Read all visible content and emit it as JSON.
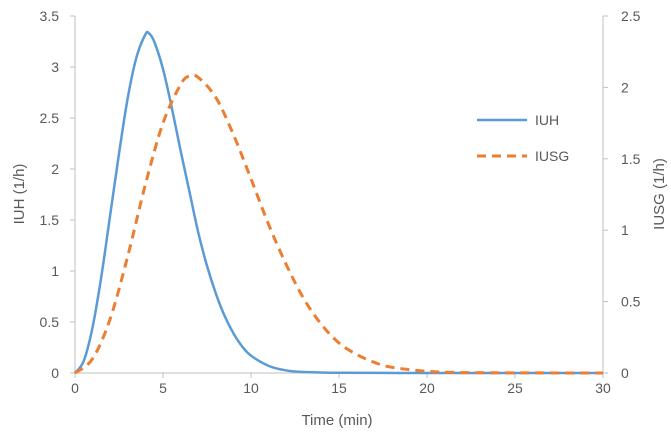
{
  "chart_data": {
    "type": "line",
    "xlabel": "Time (min)",
    "ylabel_left": "IUH (1/h)",
    "ylabel_right": "IUSG (1/h)",
    "xlim": [
      0,
      30
    ],
    "ylim_left": [
      0,
      3.5
    ],
    "ylim_right": [
      0,
      2.5
    ],
    "x_ticks": [
      "0",
      "5",
      "10",
      "15",
      "20",
      "25",
      "30"
    ],
    "y_left_ticks": [
      "0",
      "0.5",
      "1",
      "1.5",
      "2",
      "2.5",
      "3",
      "3.5"
    ],
    "y_right_ticks": [
      "0",
      "0.5",
      "1",
      "1.5",
      "2",
      "2.5"
    ],
    "grid": false,
    "legend_position": "right",
    "series": [
      {
        "name": "IUH",
        "axis": "left",
        "color": "#5B9BD5",
        "style": "solid",
        "points": [
          [
            0,
            0
          ],
          [
            0.5,
            0.12
          ],
          [
            1,
            0.45
          ],
          [
            1.5,
            0.95
          ],
          [
            2,
            1.55
          ],
          [
            2.5,
            2.15
          ],
          [
            3,
            2.7
          ],
          [
            3.5,
            3.1
          ],
          [
            4,
            3.32
          ],
          [
            4.2,
            3.33
          ],
          [
            4.5,
            3.25
          ],
          [
            5,
            2.98
          ],
          [
            5.5,
            2.6
          ],
          [
            6,
            2.18
          ],
          [
            6.5,
            1.78
          ],
          [
            7,
            1.38
          ],
          [
            7.5,
            1.05
          ],
          [
            8,
            0.78
          ],
          [
            8.5,
            0.56
          ],
          [
            9,
            0.39
          ],
          [
            9.5,
            0.26
          ],
          [
            10,
            0.17
          ],
          [
            11,
            0.07
          ],
          [
            12,
            0.025
          ],
          [
            13,
            0.01
          ],
          [
            15,
            0.002
          ],
          [
            20,
            0
          ],
          [
            25,
            0
          ],
          [
            30,
            0
          ]
        ]
      },
      {
        "name": "IUSG",
        "axis": "right",
        "color": "#ED7D31",
        "style": "dashed",
        "points": [
          [
            0,
            0
          ],
          [
            1,
            0.1
          ],
          [
            2,
            0.38
          ],
          [
            3,
            0.82
          ],
          [
            4,
            1.32
          ],
          [
            5,
            1.75
          ],
          [
            6,
            2.02
          ],
          [
            6.5,
            2.08
          ],
          [
            7,
            2.07
          ],
          [
            8,
            1.93
          ],
          [
            9,
            1.67
          ],
          [
            10,
            1.36
          ],
          [
            11,
            1.04
          ],
          [
            12,
            0.76
          ],
          [
            13,
            0.52
          ],
          [
            14,
            0.34
          ],
          [
            15,
            0.21
          ],
          [
            16,
            0.13
          ],
          [
            17,
            0.075
          ],
          [
            18,
            0.04
          ],
          [
            20,
            0.012
          ],
          [
            22,
            0.003
          ],
          [
            25,
            0.001
          ],
          [
            30,
            0
          ]
        ]
      }
    ]
  }
}
